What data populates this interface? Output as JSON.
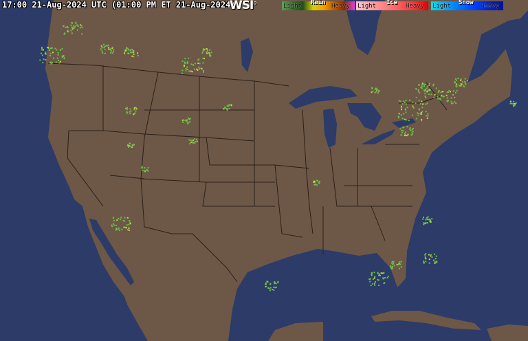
{
  "header": {
    "timestamp": "17:00 21-Aug-2024 UTC  (01:00 PM ET 21-Aug-2024)",
    "logo": "WSI"
  },
  "legend": [
    {
      "title": "Rain",
      "light": "Light",
      "heavy": "Heavy",
      "colors": [
        "#5e9a55",
        "#3a6e2c",
        "#1f4f1a",
        "#d4d000",
        "#f0a000",
        "#c05a00",
        "#8a2a00",
        "#e040e0"
      ]
    },
    {
      "title": "Ice",
      "light": "Light",
      "heavy": "Heavy",
      "colors": [
        "#ffc8c8",
        "#ffa0a0",
        "#ff8080",
        "#ff5a5a",
        "#ff3030",
        "#e00000"
      ]
    },
    {
      "title": "Snow",
      "light": "Light",
      "heavy": "Heavy",
      "colors": [
        "#00e0e0",
        "#00a8ff",
        "#0070ff",
        "#0040ff",
        "#0020d0",
        "#0010a0"
      ]
    }
  ],
  "map": {
    "ocean_color": "#2c3b68",
    "land_color": "#6d5747",
    "border_color": "#2a2018",
    "radar_color": "#6bbf4a"
  }
}
